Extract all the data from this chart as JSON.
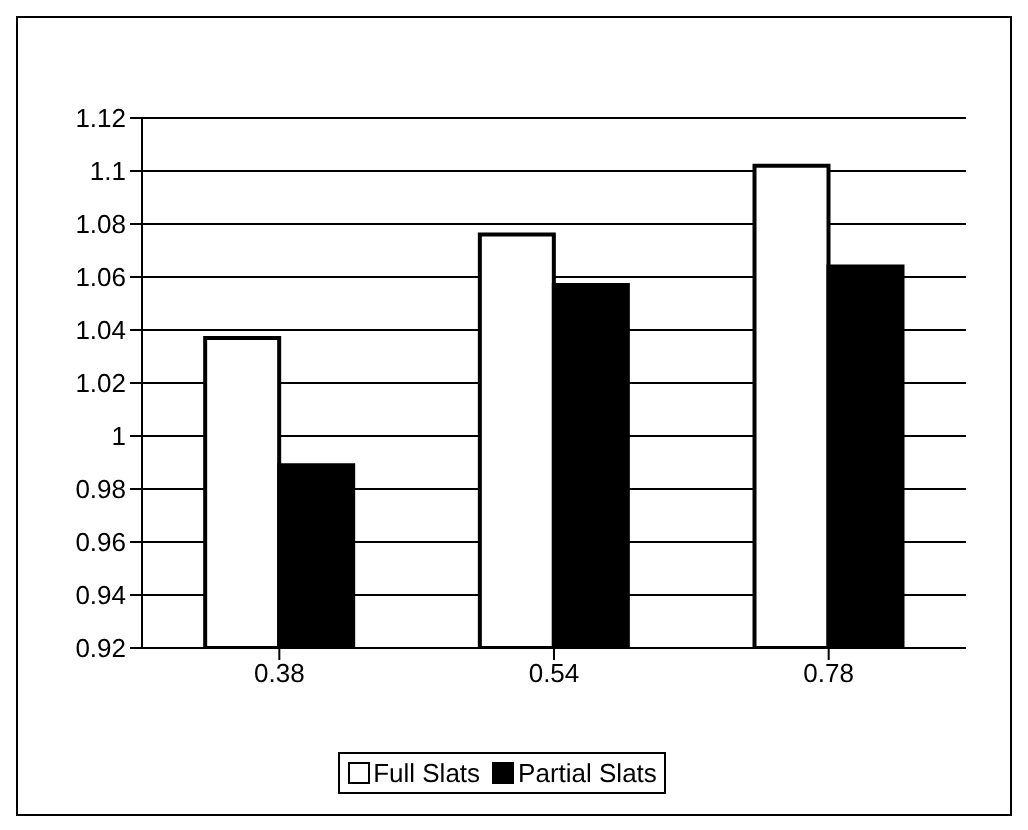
{
  "chart_data": {
    "type": "bar",
    "categories": [
      "0.38",
      "0.54",
      "0.78"
    ],
    "series": [
      {
        "name": "Full Slats",
        "color": "#ffffff",
        "values": [
          1.037,
          1.076,
          1.102
        ]
      },
      {
        "name": "Partial Slats",
        "color": "#000000",
        "values": [
          0.989,
          1.057,
          1.064
        ]
      }
    ],
    "ylim": [
      0.92,
      1.12
    ],
    "yticks": [
      0.92,
      0.94,
      0.96,
      0.98,
      1,
      1.02,
      1.04,
      1.06,
      1.08,
      1.1,
      1.12
    ],
    "grid": "y",
    "legend": "bottom"
  }
}
